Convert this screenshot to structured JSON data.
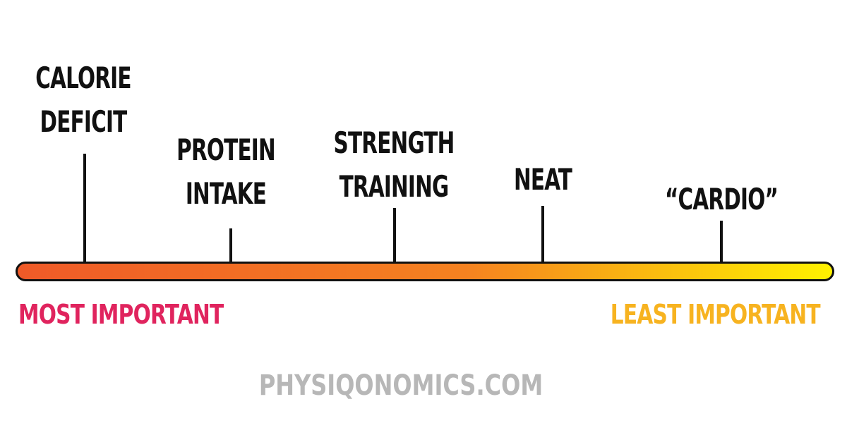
{
  "items": [
    {
      "lines": [
        "CALORIE",
        "DEFICIT"
      ]
    },
    {
      "lines": [
        "PROTEIN",
        "INTAKE"
      ]
    },
    {
      "lines": [
        "STRENGTH",
        "TRAINING"
      ]
    },
    {
      "lines": [
        "NEAT"
      ]
    },
    {
      "lines": [
        "“CARDIO”"
      ]
    }
  ],
  "scale": {
    "left_label": "MOST IMPORTANT",
    "right_label": "LEAST IMPORTANT",
    "left_color": "#e0245e",
    "right_color": "#f7b320",
    "gradient_start": "#ef5a28",
    "gradient_mid": "#f58220",
    "gradient_end": "#fff200"
  },
  "footer": "PHYSIQONOMICS.COM"
}
